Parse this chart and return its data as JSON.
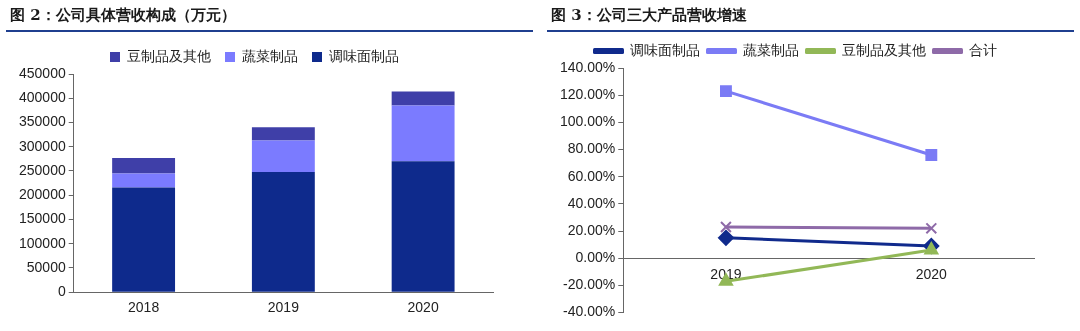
{
  "chart_data": [
    {
      "type": "bar",
      "title": "图 2：公司具体营收构成（万元）",
      "categories": [
        "2018",
        "2019",
        "2020"
      ],
      "stacked": true,
      "series": [
        {
          "name": "调味面制品",
          "color": "#0e2a8c",
          "values": [
            216000,
            248000,
            270000
          ]
        },
        {
          "name": "蔬菜制品",
          "color": "#7b7bff",
          "values": [
            29000,
            65000,
            115000
          ]
        },
        {
          "name": "豆制品及其他",
          "color": "#3f3fa8",
          "values": [
            32000,
            27000,
            29000
          ]
        }
      ],
      "ylim": [
        0,
        450000
      ],
      "yticks": [
        0,
        50000,
        100000,
        150000,
        200000,
        250000,
        300000,
        350000,
        400000,
        450000
      ],
      "grid": false,
      "legend": "top"
    },
    {
      "type": "line",
      "title": "图 3：公司三大产品营收增速",
      "categories": [
        "2019",
        "2020"
      ],
      "series": [
        {
          "name": "调味面制品",
          "color": "#102a8c",
          "marker": "diamond",
          "values": [
            15,
            9
          ]
        },
        {
          "name": "蔬菜制品",
          "color": "#7b7bf5",
          "marker": "square",
          "values": [
            123,
            76
          ]
        },
        {
          "name": "豆制品及其他",
          "color": "#92b857",
          "marker": "triangle",
          "values": [
            -17,
            6
          ]
        },
        {
          "name": "合计",
          "color": "#8e6aa8",
          "marker": "cross",
          "values": [
            23,
            22
          ]
        }
      ],
      "ylim": [
        -40,
        140
      ],
      "yticks": [
        {
          "value": -40,
          "label": "-40.00%"
        },
        {
          "value": -20,
          "label": "-20.00%"
        },
        {
          "value": 0,
          "label": "0.00%"
        },
        {
          "value": 20,
          "label": "20.00%"
        },
        {
          "value": 40,
          "label": "40.00%"
        },
        {
          "value": 60,
          "label": "60.00%"
        },
        {
          "value": 80,
          "label": "80.00%"
        },
        {
          "value": 100,
          "label": "100.00%"
        },
        {
          "value": 120,
          "label": "120.00%"
        },
        {
          "value": 140,
          "label": "140.00%"
        }
      ],
      "grid": false,
      "legend": "top"
    }
  ]
}
